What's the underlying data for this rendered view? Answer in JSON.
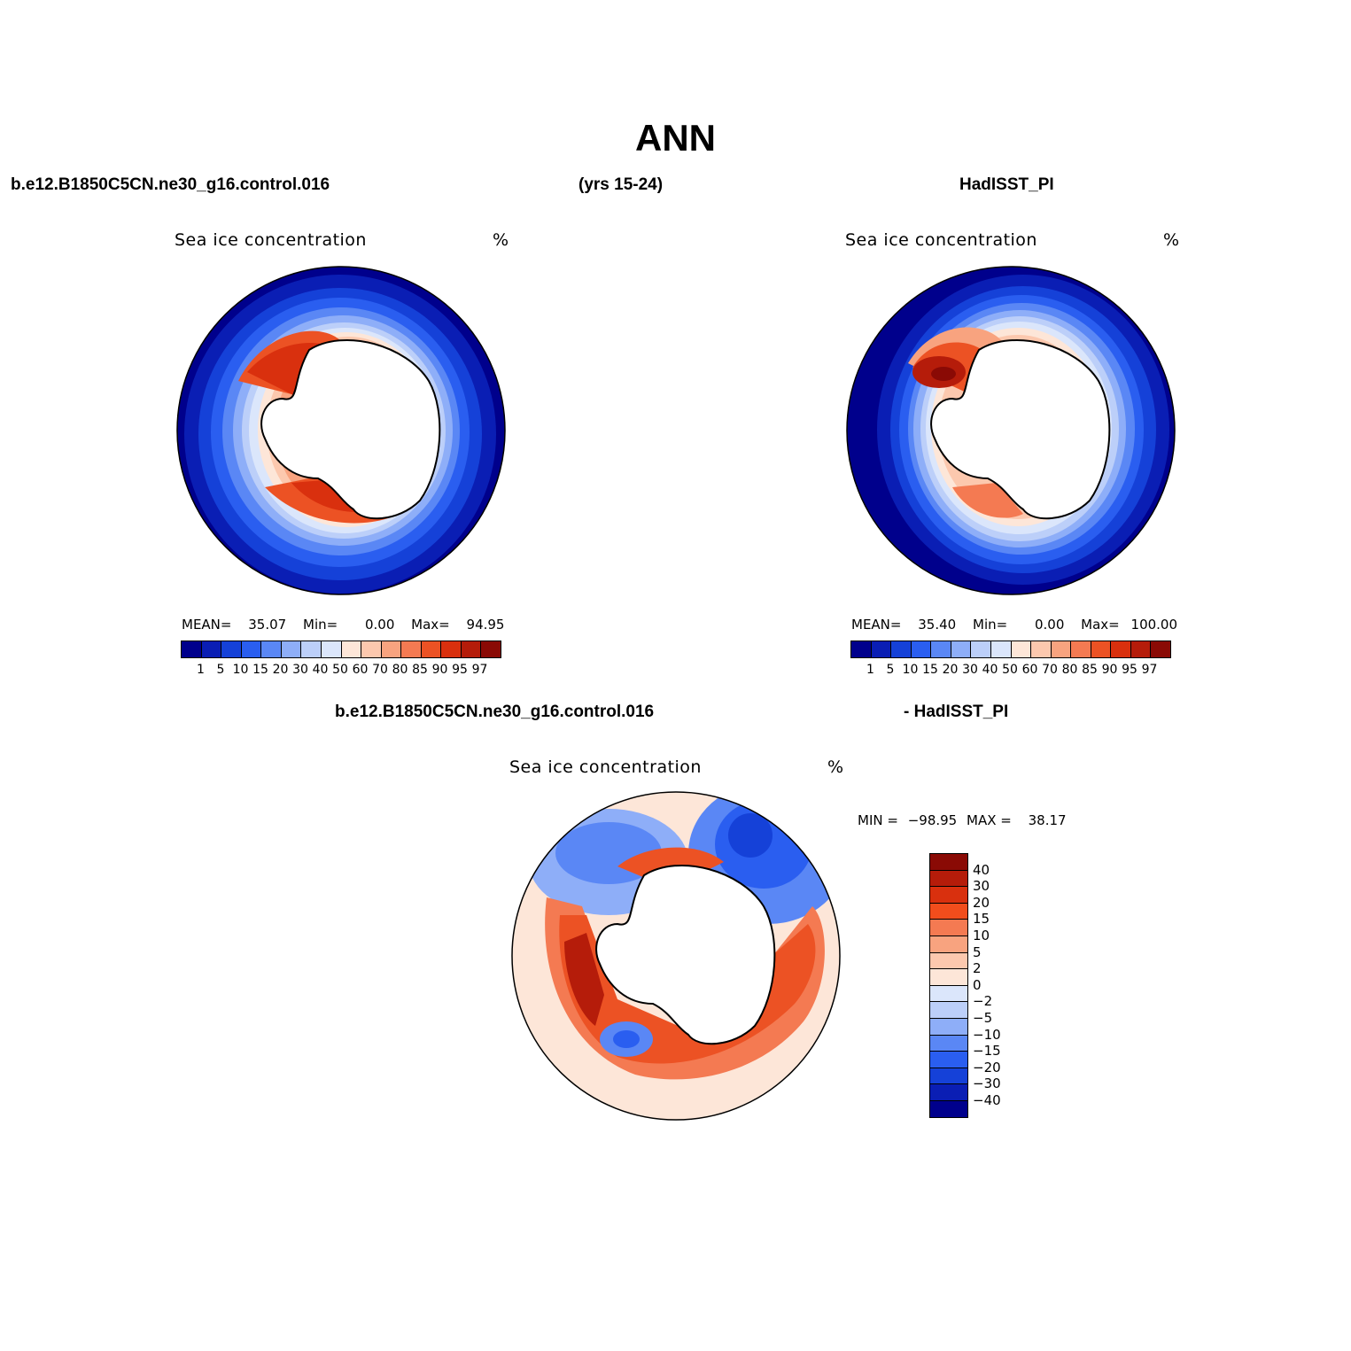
{
  "title": "ANN",
  "headers": {
    "left": "b.e12.B1850C5CN.ne30_g16.control.016",
    "center": "(yrs 15-24)",
    "right": "HadISST_PI",
    "diff_left": "b.e12.B1850C5CN.ne30_g16.control.016",
    "diff_right": "- HadISST_PI"
  },
  "panels": [
    {
      "title": "Sea ice concentration",
      "units": "%",
      "stats": {
        "mean_label": "MEAN=",
        "mean": "35.07",
        "min_label": "Min=",
        "min": "0.00",
        "max_label": "Max=",
        "max": "94.95"
      }
    },
    {
      "title": "Sea ice concentration",
      "units": "%",
      "stats": {
        "mean_label": "MEAN=",
        "mean": "35.40",
        "min_label": "Min=",
        "min": "0.00",
        "max_label": "Max=",
        "max": "100.00"
      }
    },
    {
      "title": "Sea ice concentration",
      "units": "%",
      "stats": {
        "min_label": "MIN =",
        "min": "−98.95",
        "max_label": "MAX =",
        "max": "38.17"
      }
    }
  ],
  "colorbar_abs": {
    "labels": [
      "1",
      "5",
      "10",
      "15",
      "20",
      "30",
      "40",
      "50",
      "60",
      "70",
      "80",
      "85",
      "90",
      "95",
      "97"
    ],
    "colors": [
      "#00008c",
      "#0a1eb4",
      "#1541d8",
      "#2a5ef0",
      "#5a87f5",
      "#8eaef8",
      "#bccff9",
      "#dbe6fb",
      "#fde6d8",
      "#fcc8ae",
      "#f8a37f",
      "#f47a52",
      "#ec5224",
      "#d9300e",
      "#b51c0a",
      "#8a0a05"
    ]
  },
  "colorbar_diff": {
    "labels": [
      "40",
      "30",
      "20",
      "15",
      "10",
      "5",
      "2",
      "0",
      "−2",
      "−5",
      "−10",
      "−15",
      "−20",
      "−30",
      "−40"
    ],
    "colors": [
      "#8a0a05",
      "#b51c0a",
      "#d9300e",
      "#f24d1c",
      "#f47a52",
      "#f8a37f",
      "#fcc8ae",
      "#fde6d8",
      "#dbe6fb",
      "#bccff9",
      "#8eaef8",
      "#5a87f5",
      "#2a5ef0",
      "#1541d8",
      "#0a1eb4",
      "#00008c"
    ]
  }
}
